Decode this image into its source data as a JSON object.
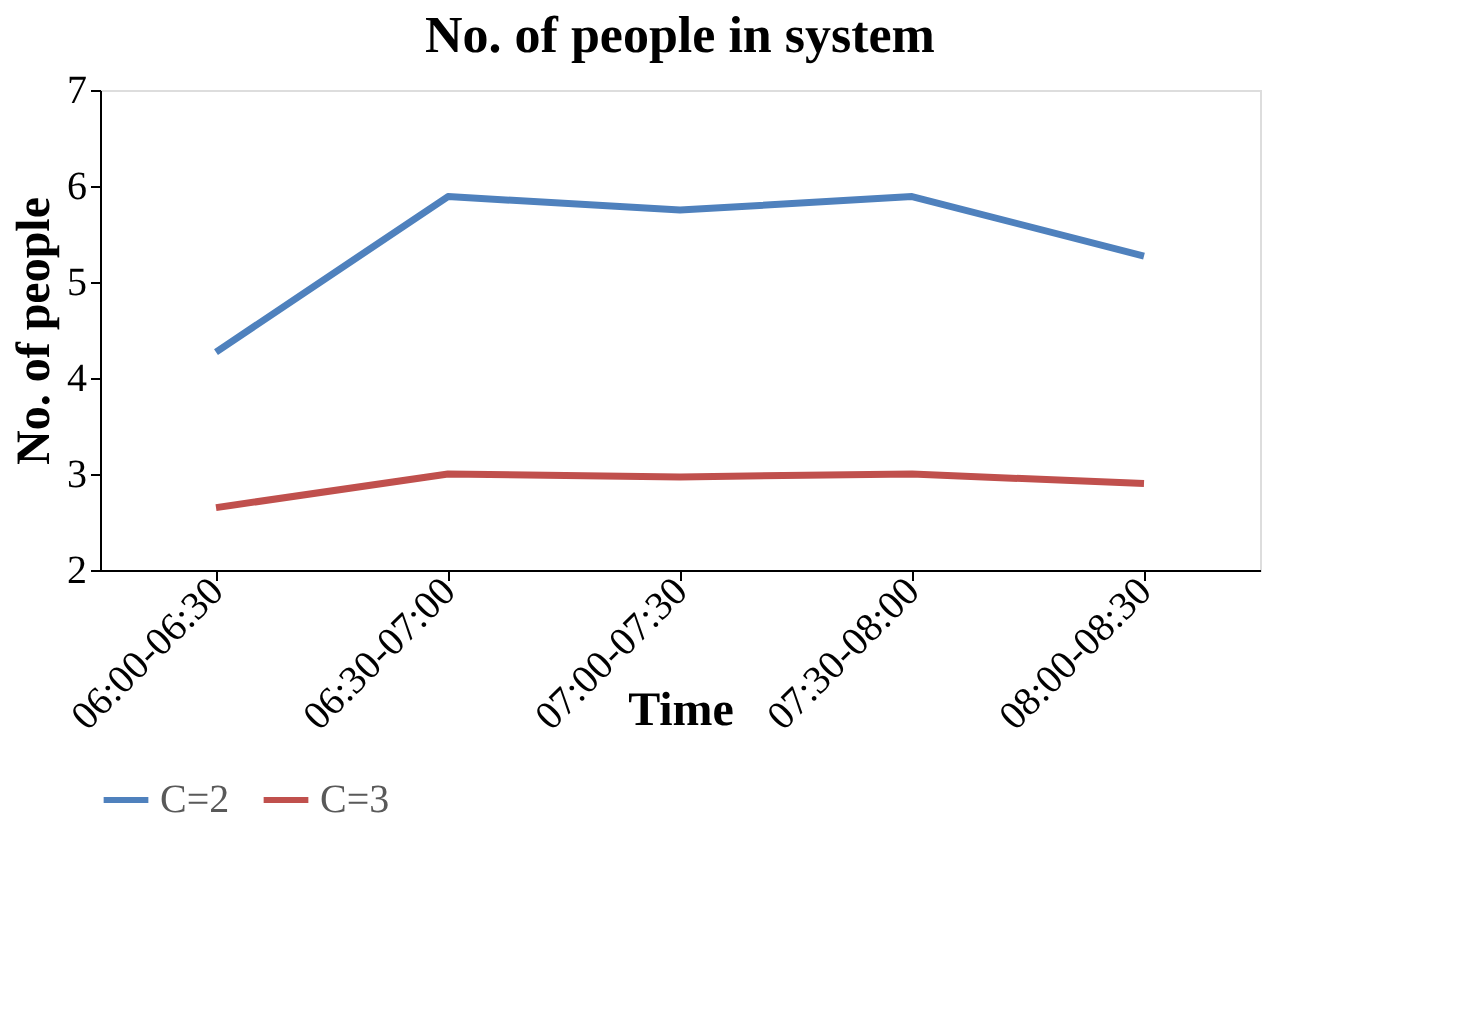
{
  "chart_data": {
    "type": "line",
    "title": "No. of people in system",
    "xlabel": "Time",
    "ylabel": "No. of people",
    "categories": [
      "06:00-06:30",
      "06:30-07:00",
      "07:00-07:30",
      "07:30-08:00",
      "08:00-08:30"
    ],
    "series": [
      {
        "name": "C=2",
        "color": "#4f81bd",
        "values": [
          4.27,
          5.89,
          5.75,
          5.89,
          5.27
        ]
      },
      {
        "name": "C=3",
        "color": "#c0504d",
        "values": [
          2.65,
          3.0,
          2.97,
          3.0,
          2.9
        ]
      }
    ],
    "ylim": [
      2,
      7
    ],
    "yticks": [
      2,
      3,
      4,
      5,
      6,
      7
    ],
    "grid": false,
    "legend": "bottom",
    "marker": "none",
    "line_style": "solid"
  }
}
